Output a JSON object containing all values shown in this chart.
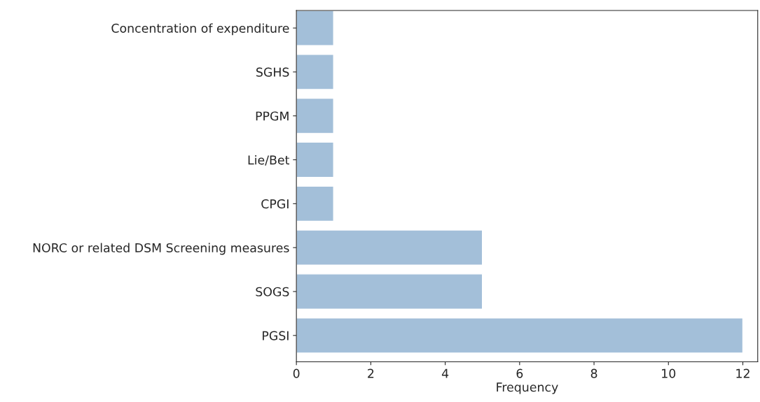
{
  "chart_data": {
    "type": "bar",
    "orientation": "horizontal",
    "xlabel": "Frequency",
    "categories": [
      "Concentration of expenditure",
      "SGHS",
      "PPGM",
      "Lie/Bet",
      "CPGI",
      "NORC or related DSM Screening measures",
      "SOGS",
      "PGSI"
    ],
    "values": [
      1,
      1,
      1,
      1,
      1,
      5,
      5,
      12
    ],
    "color": "#a3bfd9",
    "xlim": [
      0,
      12.4
    ],
    "xticks": [
      0,
      2,
      4,
      6,
      8,
      10,
      12
    ],
    "grid": false
  }
}
